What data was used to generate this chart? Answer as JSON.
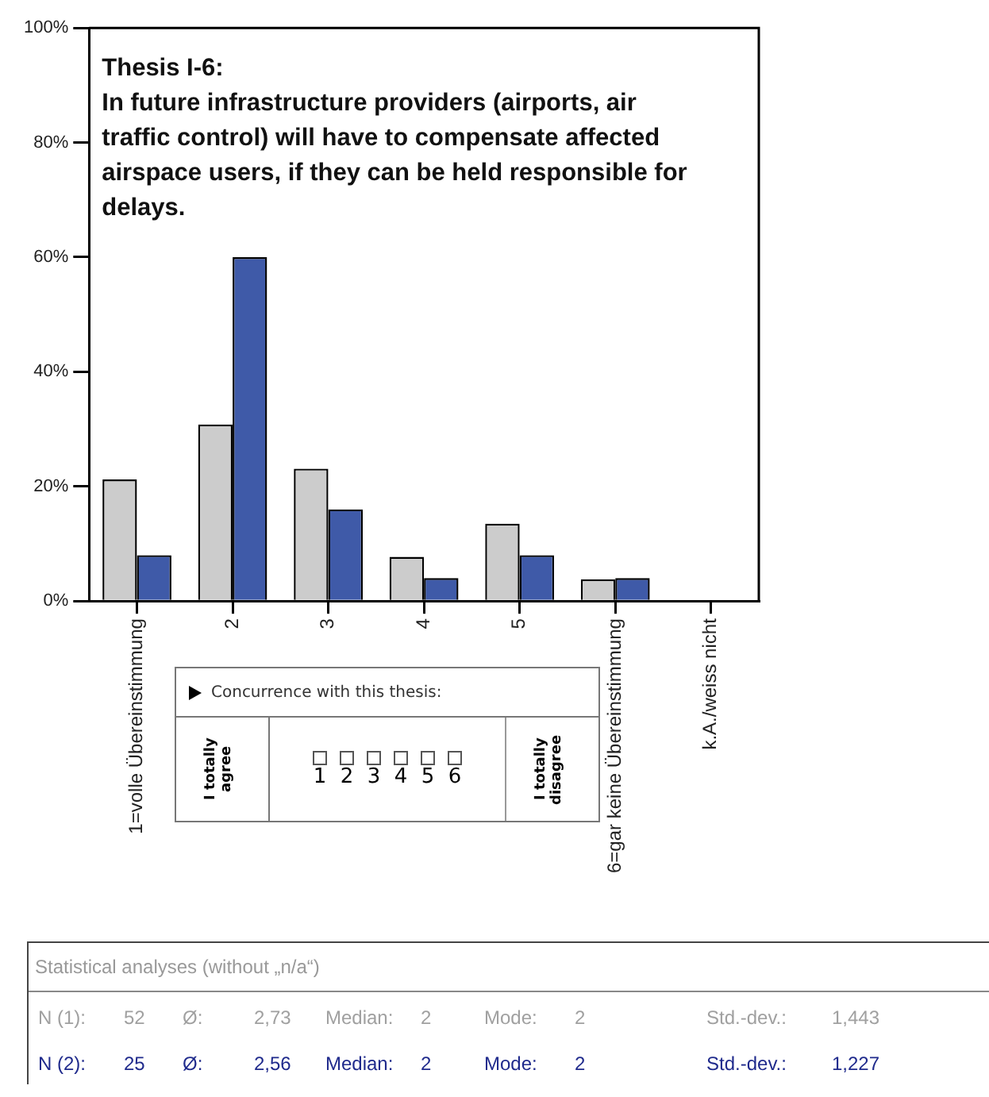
{
  "chart_data": {
    "type": "bar",
    "title": "Thesis I-6:",
    "subtitle": "In future infrastructure providers (airports, air traffic control) will have to compensate affected airspace users, if they can be held responsible for delays.",
    "categories": [
      "1=volle Übereinstimmung",
      "2",
      "3",
      "4",
      "5",
      "6=gar keine Übereinstimmung",
      "k.A./weiss nicht"
    ],
    "series": [
      {
        "color": "#cccccc",
        "values": [
          21.2,
          30.8,
          23.1,
          7.7,
          13.5,
          3.8,
          0
        ]
      },
      {
        "color": "#3f5aa8",
        "values": [
          8,
          60,
          16,
          4,
          8,
          4,
          0
        ]
      }
    ],
    "ylim": [
      0,
      100
    ],
    "yticks": [
      {
        "value": 0,
        "label": "0%"
      },
      {
        "value": 20,
        "label": "20%"
      },
      {
        "value": 40,
        "label": "40%"
      },
      {
        "value": 60,
        "label": "60%"
      },
      {
        "value": 80,
        "label": "80%"
      },
      {
        "value": 100,
        "label": "100%"
      }
    ],
    "annotations": [
      "Concurrence with this thesis:",
      "I totally agree",
      "1",
      "2",
      "3",
      "4",
      "5",
      "6",
      "I totally disagree",
      "Statistical analyses (without „n/a“)",
      "N (1):",
      "52",
      "Ø:",
      "2,73",
      "Median:",
      "2",
      "Mode:",
      "2",
      "Std.-dev.:",
      "1,443",
      "N (2):",
      "25",
      "Ø:",
      "2,56",
      "Median:",
      "2",
      "Mode:",
      "2",
      "Std.-dev.:",
      "1,227"
    ]
  }
}
